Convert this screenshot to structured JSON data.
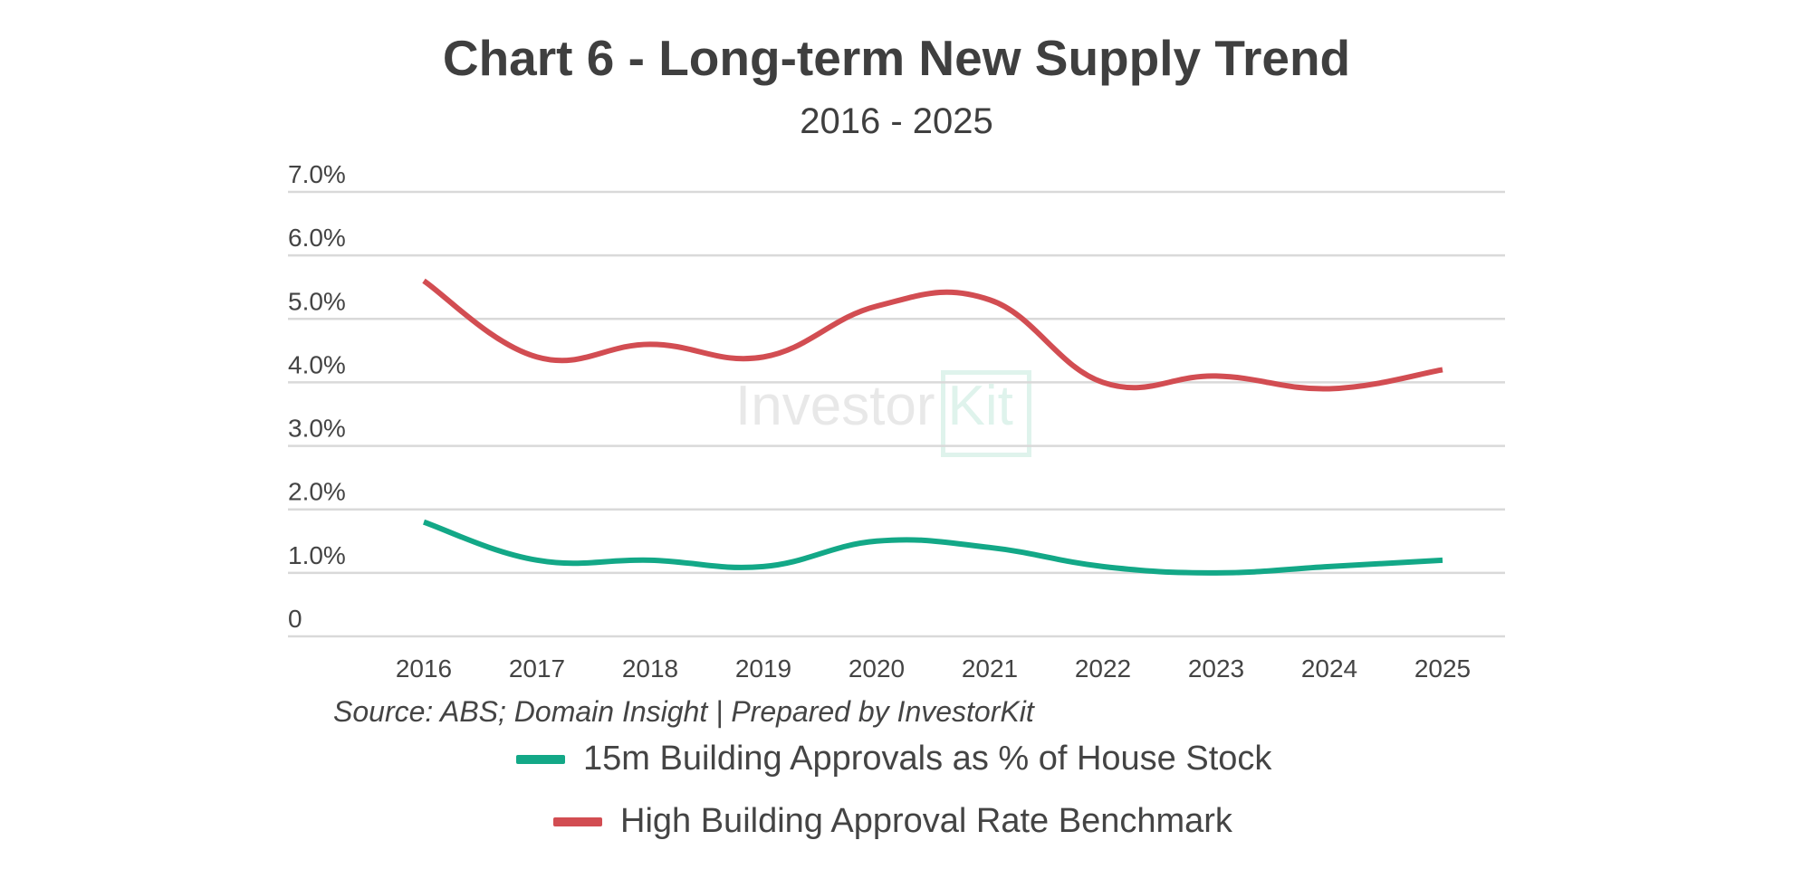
{
  "chart_data": {
    "type": "line",
    "title": "Chart 6 - Long-term New Supply Trend",
    "subtitle": "2016 - 2025",
    "xlabel": "",
    "ylabel": "",
    "categories": [
      "2016",
      "2017",
      "2018",
      "2019",
      "2020",
      "2021",
      "2022",
      "2023",
      "2024",
      "2025"
    ],
    "y_ticks": [
      "0",
      "1.0%",
      "2.0%",
      "3.0%",
      "4.0%",
      "5.0%",
      "6.0%",
      "7.0%"
    ],
    "ylim": [
      0,
      7
    ],
    "grid": true,
    "series": [
      {
        "name": "15m Building Approvals as % of House Stock",
        "color": "#13a887",
        "values": [
          1.8,
          1.2,
          1.2,
          1.1,
          1.5,
          1.4,
          1.1,
          1.0,
          1.1,
          1.2
        ]
      },
      {
        "name": "High Building Approval Rate Benchmark",
        "color": "#d24d52",
        "values": [
          5.6,
          4.4,
          4.6,
          4.4,
          5.2,
          5.3,
          4.0,
          4.1,
          3.9,
          4.2
        ]
      }
    ],
    "source": "Source: ABS; Domain Insight | Prepared by InvestorKit",
    "legend_position": "bottom"
  },
  "watermark": {
    "investor": "Investor",
    "kit": "Kit",
    "color_text": "#e8e8e8",
    "color_kit": "#dff3ec"
  }
}
